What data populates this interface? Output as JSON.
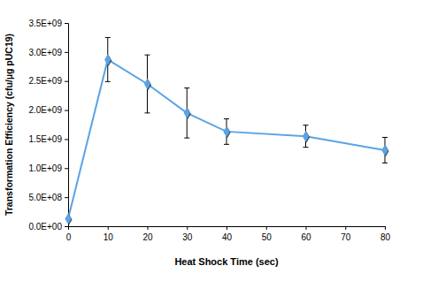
{
  "chart_data": {
    "type": "line",
    "x_label": "Heat Shock Time (sec)",
    "y_label": "Transformation Efficiency (cfu/µg pUC19)",
    "x": [
      0,
      10,
      20,
      30,
      40,
      60,
      80
    ],
    "values": [
      130000000,
      2870000000,
      2450000000,
      1950000000,
      1630000000,
      1550000000,
      1310000000
    ],
    "errors": [
      0,
      380000000,
      500000000,
      430000000,
      220000000,
      190000000,
      220000000
    ],
    "color": "#5ba3e6",
    "marker": "diamond",
    "grid": false,
    "xlim": [
      0,
      80
    ],
    "xticks": [
      0,
      10,
      20,
      30,
      40,
      50,
      60,
      70,
      80
    ],
    "ylim": [
      0,
      3500000000
    ],
    "yticks": [
      {
        "value": 0,
        "label": "0.0E+00"
      },
      {
        "value": 500000000,
        "label": "5.0E+08"
      },
      {
        "value": 1000000000,
        "label": "1.0E+09"
      },
      {
        "value": 1500000000,
        "label": "1.5E+09"
      },
      {
        "value": 2000000000,
        "label": "2.0E+09"
      },
      {
        "value": 2500000000,
        "label": "2.5E+09"
      },
      {
        "value": 3000000000,
        "label": "3.0E+09"
      },
      {
        "value": 3500000000,
        "label": "3.5E+09"
      }
    ]
  }
}
